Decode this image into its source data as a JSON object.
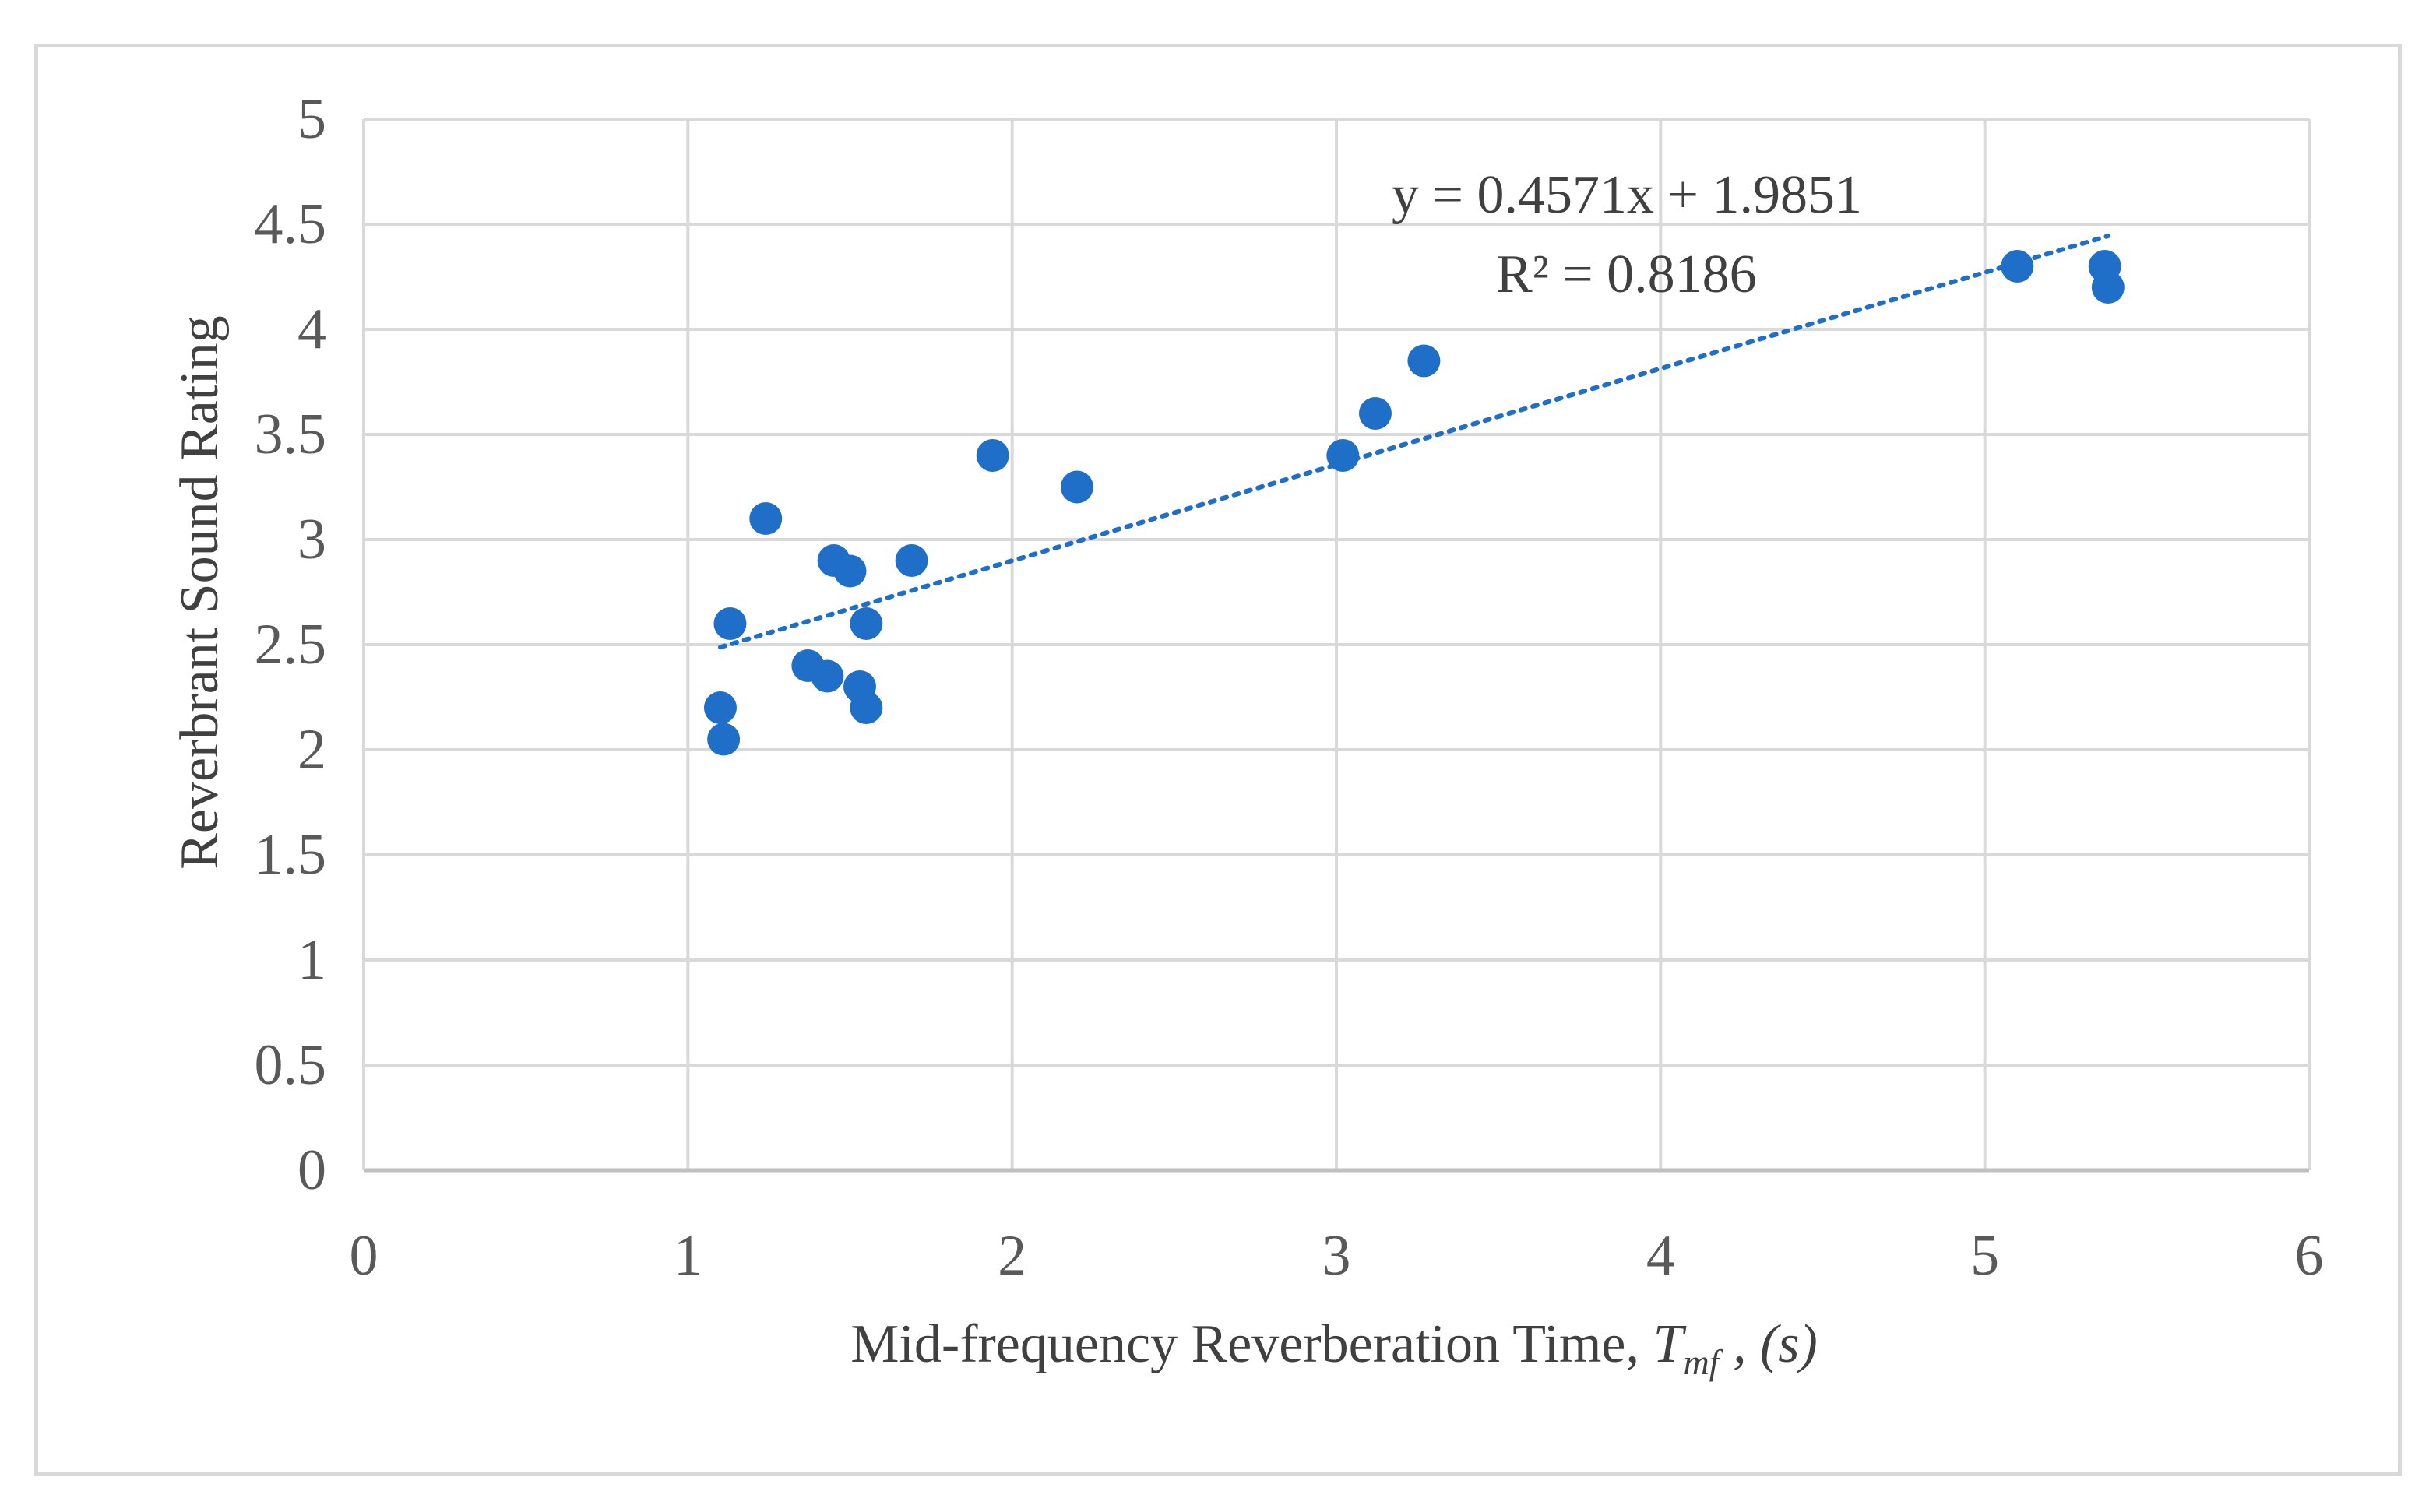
{
  "chart_data": {
    "type": "scatter",
    "title": "",
    "xlabel": "Mid-frequency Reverberation Time, ",
    "xlabel_symbol": "T",
    "xlabel_subscript": "mf",
    "xlabel_unit": " , (s)",
    "ylabel": "Reverbrant Sound Rating",
    "xlim": [
      0,
      6
    ],
    "ylim": [
      0,
      5
    ],
    "x_ticks": [
      "0",
      "1",
      "2",
      "3",
      "4",
      "5",
      "6"
    ],
    "y_ticks": [
      "0",
      "0.5",
      "1",
      "1.5",
      "2",
      "2.5",
      "3",
      "3.5",
      "4",
      "4.5",
      "5"
    ],
    "grid": true,
    "series": [
      {
        "name": "Reverberant Sound Rating",
        "color": "#1f6fc9",
        "points": [
          {
            "x": 1.1,
            "y": 2.2
          },
          {
            "x": 1.11,
            "y": 2.05
          },
          {
            "x": 1.13,
            "y": 2.6
          },
          {
            "x": 1.24,
            "y": 3.1
          },
          {
            "x": 1.37,
            "y": 2.4
          },
          {
            "x": 1.43,
            "y": 2.35
          },
          {
            "x": 1.45,
            "y": 2.9
          },
          {
            "x": 1.5,
            "y": 2.85
          },
          {
            "x": 1.53,
            "y": 2.3
          },
          {
            "x": 1.55,
            "y": 2.6
          },
          {
            "x": 1.55,
            "y": 2.2
          },
          {
            "x": 1.69,
            "y": 2.9
          },
          {
            "x": 1.94,
            "y": 3.4
          },
          {
            "x": 2.2,
            "y": 3.25
          },
          {
            "x": 3.02,
            "y": 3.4
          },
          {
            "x": 3.12,
            "y": 3.6
          },
          {
            "x": 3.27,
            "y": 3.85
          },
          {
            "x": 5.1,
            "y": 4.3
          },
          {
            "x": 5.37,
            "y": 4.3
          },
          {
            "x": 5.38,
            "y": 4.2
          }
        ]
      }
    ],
    "trendline": {
      "type": "linear",
      "slope": 0.4571,
      "intercept": 1.9851,
      "x_range": [
        1.1,
        5.38
      ],
      "style": "dotted",
      "color": "#1f6fc9",
      "equation_label": "y = 0.4571x + 1.9851",
      "r2_label": "R² = 0.8186"
    }
  }
}
